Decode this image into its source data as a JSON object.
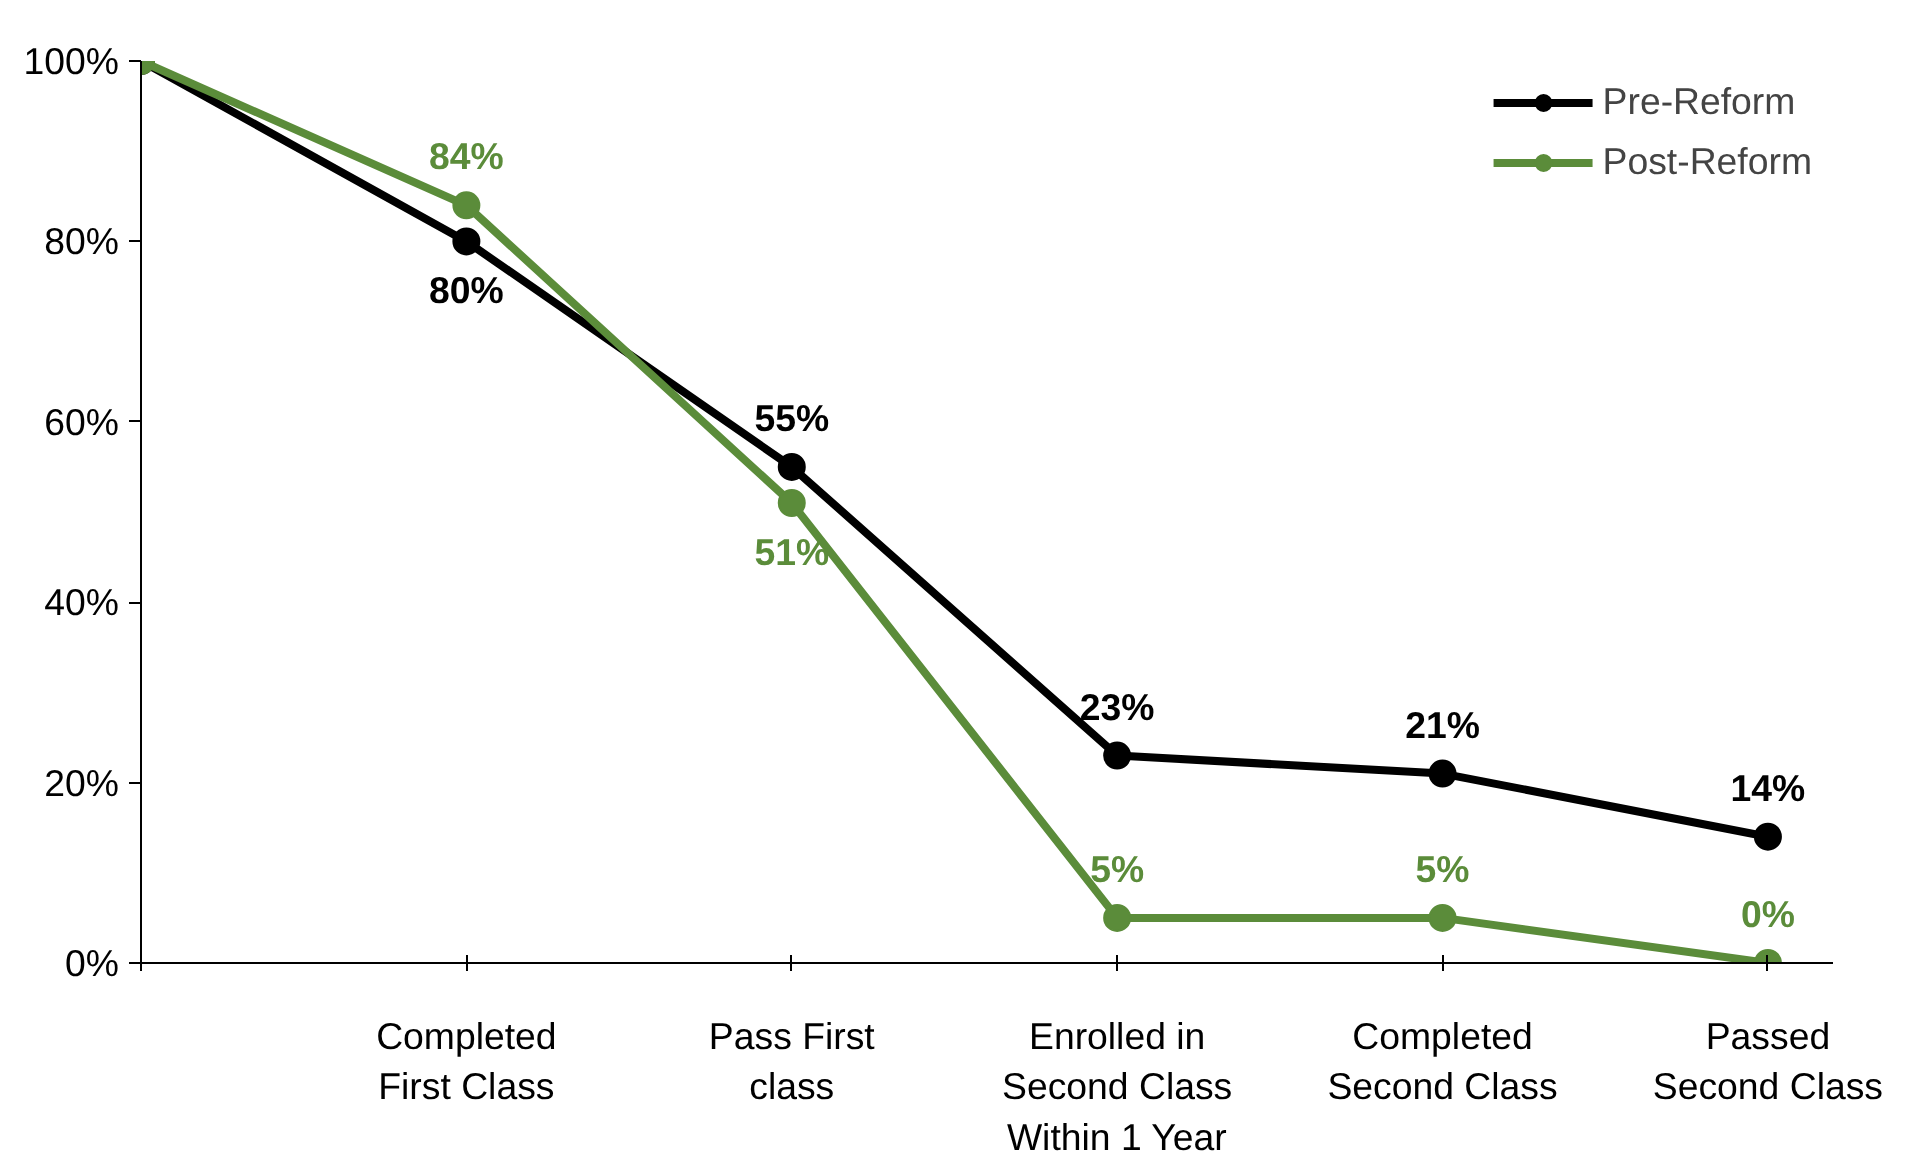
{
  "chart_data": {
    "type": "line",
    "categories": [
      null,
      "Completed\nFirst Class",
      "Pass First\nclass",
      "Enrolled in\nSecond Class\nWithin 1 Year",
      "Completed\nSecond Class",
      "Passed\nSecond Class"
    ],
    "series": [
      {
        "name": "Pre-Reform",
        "color": "#000000",
        "values": [
          100,
          80,
          55,
          23,
          21,
          14
        ],
        "value_labels": [
          null,
          "80%",
          "55%",
          "23%",
          "21%",
          "14%"
        ]
      },
      {
        "name": "Post-Reform",
        "color": "#5b8c3a",
        "values": [
          100,
          84,
          51,
          5,
          5,
          0
        ],
        "value_labels": [
          null,
          "84%",
          "51%",
          "5%",
          "5%",
          "0%"
        ]
      }
    ],
    "ylim": [
      0,
      100
    ],
    "yticks": [
      {
        "value": 0,
        "label": "0%"
      },
      {
        "value": 20,
        "label": "20%"
      },
      {
        "value": 40,
        "label": "40%"
      },
      {
        "value": 60,
        "label": "60%"
      },
      {
        "value": 80,
        "label": "80%"
      },
      {
        "value": 100,
        "label": "100%"
      }
    ],
    "grid": false,
    "legend": "top right",
    "marker": "circle",
    "line_style": "solid"
  }
}
